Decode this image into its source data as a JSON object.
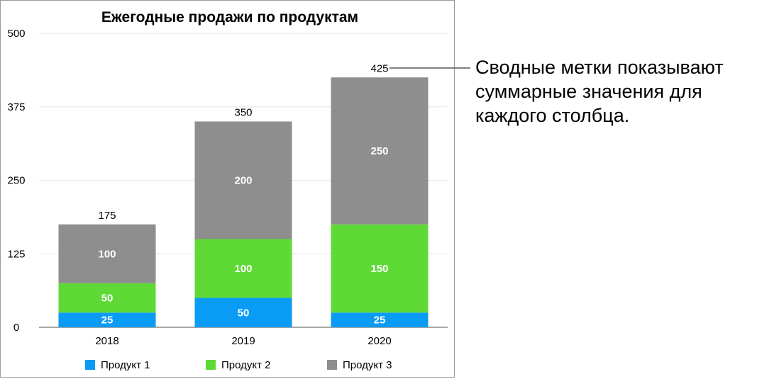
{
  "chart_data": {
    "type": "bar",
    "stacked": true,
    "title": "Ежегодные продажи по продуктам",
    "categories": [
      "2018",
      "2019",
      "2020"
    ],
    "series": [
      {
        "name": "Продукт 1",
        "color": "#0a9bf5",
        "values": [
          25,
          50,
          25
        ]
      },
      {
        "name": "Продукт 2",
        "color": "#5fd936",
        "values": [
          50,
          100,
          150
        ]
      },
      {
        "name": "Продукт 3",
        "color": "#8e8e8e",
        "values": [
          100,
          200,
          250
        ]
      }
    ],
    "totals": [
      175,
      350,
      425
    ],
    "ylim": [
      0,
      500
    ],
    "yticks": [
      0,
      125,
      250,
      375,
      500
    ],
    "grid": true,
    "legend": "bottom"
  },
  "callout": {
    "text": "Сводные метки показывают суммарные значения для каждого столбца."
  }
}
